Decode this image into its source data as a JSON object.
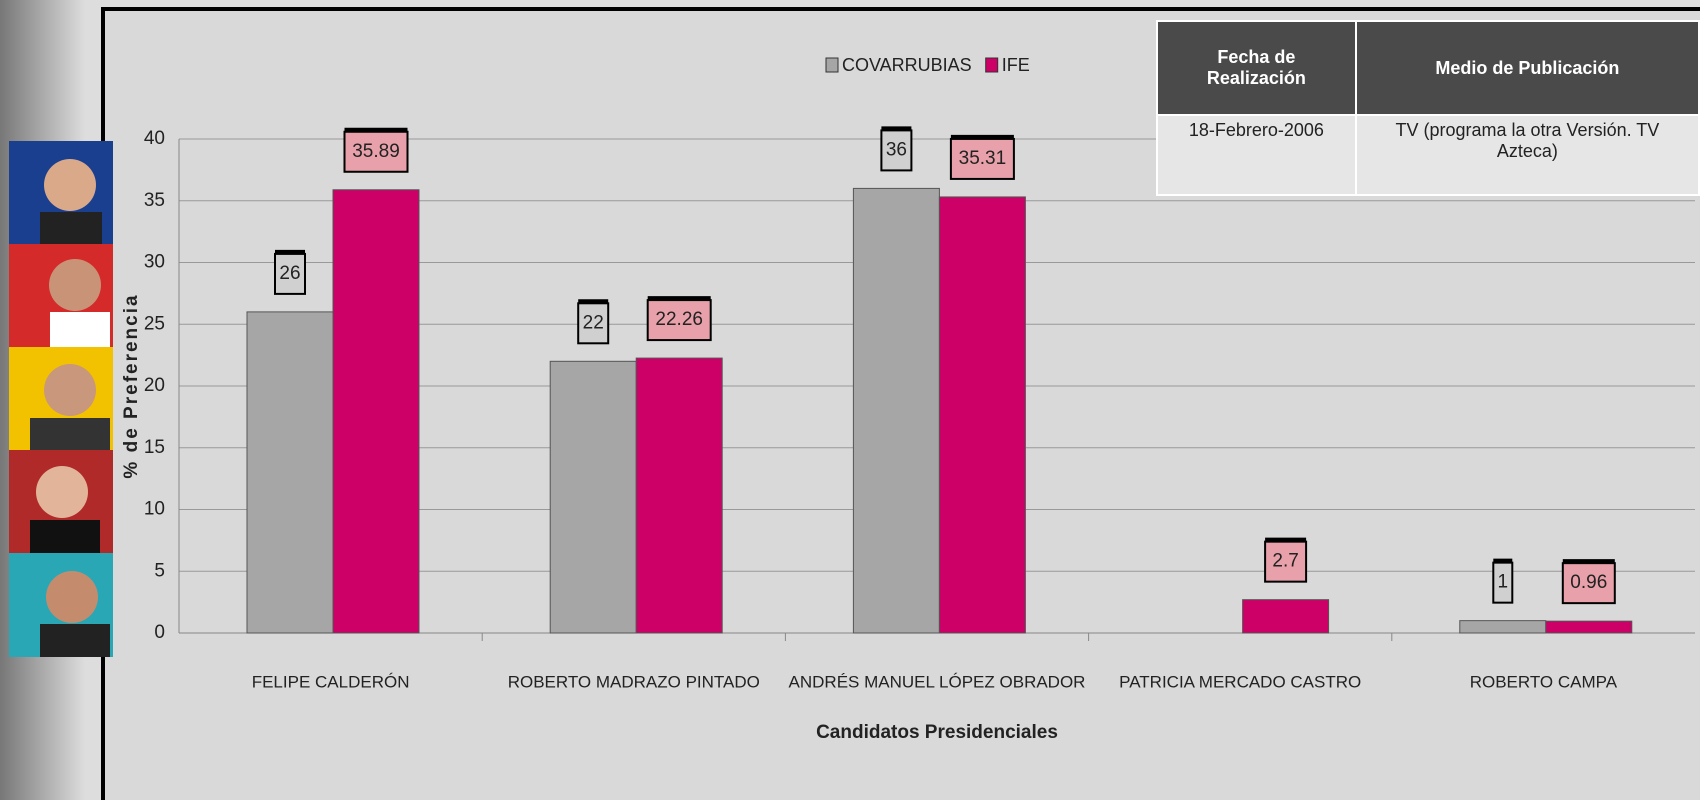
{
  "chart_data": {
    "type": "bar",
    "legend": "top",
    "categories": [
      "FELIPE CALDERÓN",
      "ROBERTO MADRAZO PINTADO",
      "ANDRÉS MANUEL LÓPEZ OBRADOR",
      "PATRICIA MERCADO CASTRO",
      "ROBERTO CAMPA"
    ],
    "series": [
      {
        "name": "COVARRUBIAS",
        "color": "#a6a6a6",
        "values": [
          26,
          22,
          36,
          null,
          1
        ]
      },
      {
        "name": "IFE",
        "color": "#cc0066",
        "values": [
          35.89,
          22.26,
          35.31,
          2.7,
          0.96
        ]
      }
    ],
    "xlabel": "Candidatos Presidenciales",
    "ylabel": "% de Preferencia",
    "ylim": [
      0,
      40
    ],
    "yticks": [
      0,
      5,
      10,
      15,
      20,
      25,
      30,
      35,
      40
    ],
    "grid": true
  },
  "table": {
    "header": [
      "Fecha de Realización",
      "Medio de Publicación"
    ],
    "rows": [
      [
        "18-Febrero-2006",
        "TV (programa la otra Versión. TV Azteca)"
      ]
    ]
  }
}
